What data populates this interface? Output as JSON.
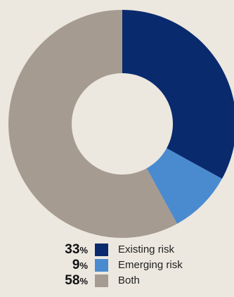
{
  "chart_data": {
    "type": "pie",
    "style": "donut",
    "categories": [
      "Existing risk",
      "Emerging risk",
      "Both"
    ],
    "values": [
      33,
      9,
      58
    ],
    "unit": "%",
    "colors": [
      "#0a2a6e",
      "#4a8bd0",
      "#a59b90"
    ],
    "legend_position": "bottom"
  },
  "legend": [
    {
      "value": "33",
      "unit": "%",
      "label": "Existing risk",
      "color": "#0a2a6e"
    },
    {
      "value": "9",
      "unit": "%",
      "label": "Emerging risk",
      "color": "#4a8bd0"
    },
    {
      "value": "58",
      "unit": "%",
      "label": "Both",
      "color": "#a59b90"
    }
  ],
  "background_color": "#ece8df"
}
